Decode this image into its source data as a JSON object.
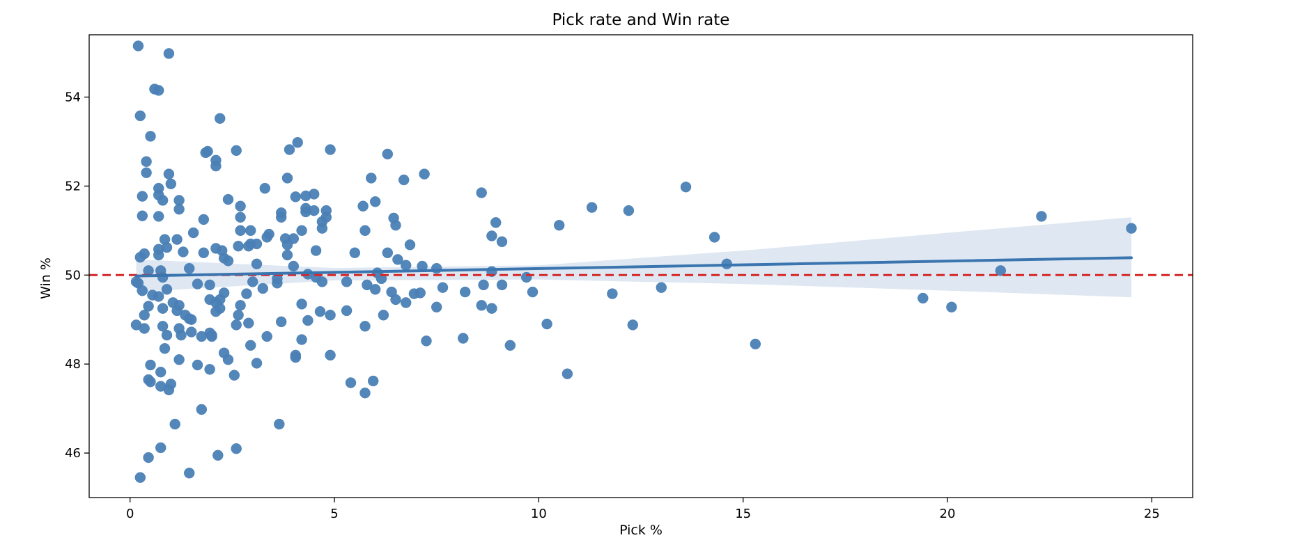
{
  "colors": {
    "points": "#4a7fb5",
    "trend_line": "#3b75af",
    "confidence_band": "#c9d9ea",
    "reference_line": "#d62728",
    "axes": "#000000"
  },
  "chart_data": {
    "type": "scatter",
    "title": "Pick rate and Win rate",
    "xlabel": "Pick %",
    "ylabel": "Win %",
    "xlim": [
      -1,
      26
    ],
    "ylim": [
      45,
      55.4
    ],
    "xticks": [
      0,
      5,
      10,
      15,
      20,
      25
    ],
    "yticks": [
      46,
      48,
      50,
      52,
      54
    ],
    "grid": false,
    "legend": "none",
    "reference_line": {
      "y": 50,
      "style": "dashed"
    },
    "regression": {
      "start": [
        0.15,
        49.98
      ],
      "end": [
        24.5,
        50.39
      ],
      "band_upper": [
        [
          0.15,
          50.35
        ],
        [
          5,
          50.16
        ],
        [
          10,
          50.22
        ],
        [
          15,
          50.55
        ],
        [
          20,
          50.95
        ],
        [
          24.5,
          51.3
        ]
      ],
      "band_lower": [
        [
          0.15,
          49.62
        ],
        [
          5,
          49.88
        ],
        [
          10,
          49.9
        ],
        [
          15,
          49.8
        ],
        [
          20,
          49.65
        ],
        [
          24.5,
          49.5
        ]
      ]
    },
    "points": [
      [
        0.2,
        55.15
      ],
      [
        0.95,
        54.98
      ],
      [
        0.6,
        54.18
      ],
      [
        0.7,
        54.15
      ],
      [
        0.25,
        53.58
      ],
      [
        2.2,
        53.52
      ],
      [
        0.5,
        53.12
      ],
      [
        4.1,
        52.98
      ],
      [
        3.9,
        52.82
      ],
      [
        4.9,
        52.82
      ],
      [
        2.6,
        52.8
      ],
      [
        1.9,
        52.78
      ],
      [
        1.85,
        52.75
      ],
      [
        6.3,
        52.72
      ],
      [
        2.1,
        52.58
      ],
      [
        0.4,
        52.55
      ],
      [
        2.1,
        52.45
      ],
      [
        0.4,
        52.3
      ],
      [
        0.95,
        52.27
      ],
      [
        7.2,
        52.27
      ],
      [
        3.85,
        52.18
      ],
      [
        5.9,
        52.18
      ],
      [
        6.7,
        52.14
      ],
      [
        1.0,
        52.05
      ],
      [
        3.3,
        51.95
      ],
      [
        13.6,
        51.98
      ],
      [
        0.7,
        51.95
      ],
      [
        8.6,
        51.85
      ],
      [
        4.5,
        51.82
      ],
      [
        0.3,
        51.77
      ],
      [
        4.3,
        51.78
      ],
      [
        4.05,
        51.76
      ],
      [
        0.7,
        51.8
      ],
      [
        2.4,
        51.7
      ],
      [
        0.8,
        51.68
      ],
      [
        1.2,
        51.68
      ],
      [
        6.0,
        51.65
      ],
      [
        2.7,
        51.55
      ],
      [
        5.7,
        51.55
      ],
      [
        4.3,
        51.5
      ],
      [
        11.3,
        51.52
      ],
      [
        12.2,
        51.45
      ],
      [
        1.2,
        51.48
      ],
      [
        4.5,
        51.45
      ],
      [
        4.8,
        51.45
      ],
      [
        4.3,
        51.42
      ],
      [
        3.7,
        51.4
      ],
      [
        3.7,
        51.3
      ],
      [
        0.3,
        51.33
      ],
      [
        0.7,
        51.32
      ],
      [
        4.8,
        51.3
      ],
      [
        6.45,
        51.28
      ],
      [
        2.7,
        51.3
      ],
      [
        22.3,
        51.32
      ],
      [
        1.8,
        51.25
      ],
      [
        4.7,
        51.2
      ],
      [
        8.95,
        51.18
      ],
      [
        6.5,
        51.12
      ],
      [
        10.5,
        51.12
      ],
      [
        24.5,
        51.05
      ],
      [
        4.2,
        51.0
      ],
      [
        2.7,
        51.0
      ],
      [
        2.95,
        51.0
      ],
      [
        4.7,
        51.05
      ],
      [
        5.75,
        51.0
      ],
      [
        1.55,
        50.95
      ],
      [
        3.4,
        50.92
      ],
      [
        3.35,
        50.85
      ],
      [
        3.8,
        50.82
      ],
      [
        4.0,
        50.82
      ],
      [
        8.85,
        50.88
      ],
      [
        14.3,
        50.85
      ],
      [
        0.85,
        50.8
      ],
      [
        1.15,
        50.8
      ],
      [
        9.1,
        50.75
      ],
      [
        2.65,
        50.65
      ],
      [
        2.95,
        50.7
      ],
      [
        3.1,
        50.7
      ],
      [
        2.9,
        50.65
      ],
      [
        3.85,
        50.68
      ],
      [
        6.85,
        50.68
      ],
      [
        0.9,
        50.62
      ],
      [
        0.7,
        50.58
      ],
      [
        2.1,
        50.6
      ],
      [
        4.55,
        50.55
      ],
      [
        2.25,
        50.55
      ],
      [
        0.7,
        50.45
      ],
      [
        1.3,
        50.52
      ],
      [
        1.8,
        50.5
      ],
      [
        0.35,
        50.48
      ],
      [
        0.25,
        50.4
      ],
      [
        5.5,
        50.5
      ],
      [
        6.3,
        50.5
      ],
      [
        3.85,
        50.45
      ],
      [
        2.3,
        50.38
      ],
      [
        2.4,
        50.32
      ],
      [
        6.55,
        50.35
      ],
      [
        14.6,
        50.25
      ],
      [
        3.1,
        50.25
      ],
      [
        6.75,
        50.22
      ],
      [
        4.0,
        50.2
      ],
      [
        1.45,
        50.15
      ],
      [
        7.15,
        50.2
      ],
      [
        7.5,
        50.15
      ],
      [
        0.45,
        50.1
      ],
      [
        0.75,
        50.1
      ],
      [
        8.85,
        50.08
      ],
      [
        21.3,
        50.1
      ],
      [
        6.05,
        50.05
      ],
      [
        4.35,
        50.02
      ],
      [
        0.8,
        49.95
      ],
      [
        3.6,
        49.92
      ],
      [
        4.55,
        49.95
      ],
      [
        6.15,
        49.92
      ],
      [
        9.7,
        49.95
      ],
      [
        0.15,
        49.85
      ],
      [
        0.2,
        49.82
      ],
      [
        3.0,
        49.85
      ],
      [
        4.7,
        49.85
      ],
      [
        5.3,
        49.85
      ],
      [
        1.65,
        49.8
      ],
      [
        1.95,
        49.78
      ],
      [
        3.6,
        49.82
      ],
      [
        5.8,
        49.78
      ],
      [
        8.65,
        49.78
      ],
      [
        9.1,
        49.78
      ],
      [
        0.9,
        49.68
      ],
      [
        0.3,
        49.65
      ],
      [
        3.25,
        49.7
      ],
      [
        7.65,
        49.72
      ],
      [
        13.0,
        49.72
      ],
      [
        6.0,
        49.68
      ],
      [
        8.2,
        49.62
      ],
      [
        9.85,
        49.62
      ],
      [
        6.4,
        49.62
      ],
      [
        2.3,
        49.6
      ],
      [
        2.85,
        49.58
      ],
      [
        0.55,
        49.55
      ],
      [
        7.1,
        49.6
      ],
      [
        11.8,
        49.58
      ],
      [
        0.7,
        49.52
      ],
      [
        6.95,
        49.58
      ],
      [
        19.4,
        49.48
      ],
      [
        1.95,
        49.45
      ],
      [
        6.5,
        49.45
      ],
      [
        4.2,
        49.35
      ],
      [
        2.2,
        49.45
      ],
      [
        2.1,
        49.38
      ],
      [
        6.75,
        49.38
      ],
      [
        1.05,
        49.38
      ],
      [
        1.2,
        49.32
      ],
      [
        2.7,
        49.32
      ],
      [
        0.45,
        49.3
      ],
      [
        0.8,
        49.25
      ],
      [
        8.6,
        49.32
      ],
      [
        7.5,
        49.28
      ],
      [
        20.1,
        49.28
      ],
      [
        8.85,
        49.25
      ],
      [
        2.2,
        49.25
      ],
      [
        5.3,
        49.2
      ],
      [
        1.15,
        49.2
      ],
      [
        2.1,
        49.18
      ],
      [
        4.65,
        49.18
      ],
      [
        0.35,
        49.1
      ],
      [
        1.35,
        49.1
      ],
      [
        2.65,
        49.1
      ],
      [
        6.2,
        49.1
      ],
      [
        4.9,
        49.1
      ],
      [
        1.45,
        49.02
      ],
      [
        1.5,
        49.0
      ],
      [
        4.35,
        48.98
      ],
      [
        3.7,
        48.95
      ],
      [
        2.9,
        48.92
      ],
      [
        2.6,
        48.88
      ],
      [
        0.8,
        48.85
      ],
      [
        0.15,
        48.88
      ],
      [
        10.2,
        48.9
      ],
      [
        12.3,
        48.88
      ],
      [
        5.75,
        48.85
      ],
      [
        0.35,
        48.8
      ],
      [
        1.2,
        48.8
      ],
      [
        1.5,
        48.72
      ],
      [
        1.95,
        48.7
      ],
      [
        0.9,
        48.65
      ],
      [
        1.25,
        48.65
      ],
      [
        3.35,
        48.62
      ],
      [
        2.0,
        48.65
      ],
      [
        1.75,
        48.62
      ],
      [
        2.0,
        48.62
      ],
      [
        8.15,
        48.58
      ],
      [
        4.2,
        48.55
      ],
      [
        7.25,
        48.52
      ],
      [
        9.3,
        48.42
      ],
      [
        2.95,
        48.42
      ],
      [
        15.3,
        48.45
      ],
      [
        0.85,
        48.35
      ],
      [
        2.3,
        48.25
      ],
      [
        4.05,
        48.2
      ],
      [
        4.9,
        48.2
      ],
      [
        4.05,
        48.15
      ],
      [
        1.2,
        48.1
      ],
      [
        2.4,
        48.1
      ],
      [
        3.1,
        48.02
      ],
      [
        0.5,
        47.98
      ],
      [
        1.65,
        47.98
      ],
      [
        1.95,
        47.88
      ],
      [
        0.75,
        47.82
      ],
      [
        10.7,
        47.78
      ],
      [
        2.55,
        47.75
      ],
      [
        0.45,
        47.65
      ],
      [
        5.95,
        47.62
      ],
      [
        5.4,
        47.58
      ],
      [
        0.5,
        47.6
      ],
      [
        1.0,
        47.55
      ],
      [
        0.75,
        47.5
      ],
      [
        0.95,
        47.42
      ],
      [
        5.75,
        47.35
      ],
      [
        1.75,
        46.98
      ],
      [
        1.1,
        46.65
      ],
      [
        3.65,
        46.65
      ],
      [
        0.75,
        46.12
      ],
      [
        2.6,
        46.1
      ],
      [
        2.15,
        45.95
      ],
      [
        0.45,
        45.9
      ],
      [
        1.45,
        45.55
      ],
      [
        0.25,
        45.45
      ]
    ]
  }
}
